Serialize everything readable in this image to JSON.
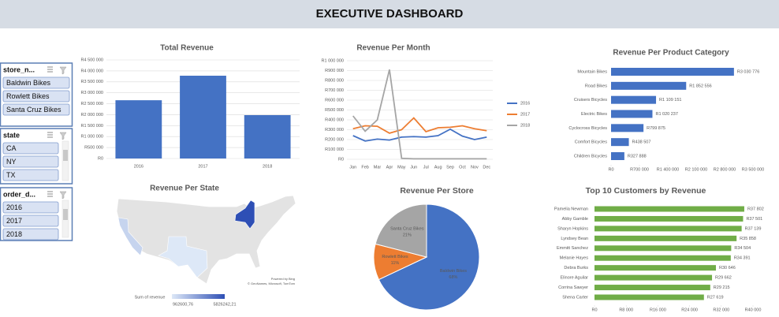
{
  "header": {
    "title": "EXECUTIVE DASHBOARD"
  },
  "slicers": [
    {
      "title": "store_n...",
      "items": [
        "Baldwin Bikes",
        "Rowlett Bikes",
        "Santa Cruz Bikes"
      ]
    },
    {
      "title": "state",
      "items": [
        "CA",
        "NY",
        "TX"
      ]
    },
    {
      "title": "order_d...",
      "items": [
        "2016",
        "2017",
        "2018"
      ]
    }
  ],
  "chart_data": [
    {
      "type": "bar",
      "title": "Total Revenue",
      "categories": [
        "2016",
        "2017",
        "2018"
      ],
      "values": [
        2660000,
        3780000,
        1980000
      ],
      "color": "#4472c4",
      "grid": true,
      "ylim": [
        0,
        4500000
      ],
      "yticks": [
        {
          "value": 0,
          "label": "R0"
        },
        {
          "value": 500000,
          "label": "R500 000"
        },
        {
          "value": 1000000,
          "label": "R1 000 000"
        },
        {
          "value": 1500000,
          "label": "R1 500 000"
        },
        {
          "value": 2000000,
          "label": "R2 000 000"
        },
        {
          "value": 2500000,
          "label": "R2 500 000"
        },
        {
          "value": 3000000,
          "label": "R3 000 000"
        },
        {
          "value": 3500000,
          "label": "R3 500 000"
        },
        {
          "value": 4000000,
          "label": "R4 000 000"
        },
        {
          "value": 4500000,
          "label": "R4 500 000"
        }
      ]
    },
    {
      "type": "line",
      "title": "Revenue Per Month",
      "categories": [
        "Jan",
        "Feb",
        "Mar",
        "Apr",
        "May",
        "Jun",
        "Jul",
        "Aug",
        "Sep",
        "Oct",
        "Nov",
        "Dec"
      ],
      "series": [
        {
          "name": "2016",
          "color": "#4472c4",
          "values": [
            240000,
            185000,
            205000,
            195000,
            225000,
            230000,
            225000,
            240000,
            305000,
            235000,
            200000,
            225000
          ]
        },
        {
          "name": "2017",
          "color": "#ed7d31",
          "values": [
            310000,
            340000,
            335000,
            265000,
            300000,
            420000,
            280000,
            320000,
            325000,
            340000,
            310000,
            290000
          ]
        },
        {
          "name": "2018",
          "color": "#a5a5a5",
          "values": [
            440000,
            285000,
            400000,
            910000,
            10000,
            5000,
            5000,
            5000,
            5000,
            5000,
            5000,
            5000
          ]
        }
      ],
      "grid": true,
      "legend": "right",
      "ylim": [
        0,
        1000000
      ],
      "yticks": [
        {
          "value": 0,
          "label": "R0"
        },
        {
          "value": 100000,
          "label": "R100 000"
        },
        {
          "value": 200000,
          "label": "R200 000"
        },
        {
          "value": 300000,
          "label": "R300 000"
        },
        {
          "value": 400000,
          "label": "R400 000"
        },
        {
          "value": 500000,
          "label": "R500 000"
        },
        {
          "value": 600000,
          "label": "R600 000"
        },
        {
          "value": 700000,
          "label": "R700 000"
        },
        {
          "value": 800000,
          "label": "R800 000"
        },
        {
          "value": 900000,
          "label": "R900 000"
        },
        {
          "value": 1000000,
          "label": "R1 000 000"
        }
      ]
    },
    {
      "type": "barh",
      "title": "Revenue Per Product Category",
      "categories": [
        "Mountain Bikes",
        "Road Bikes",
        "Cruisers Bicycles",
        "Electric Bikes",
        "Cyclocross Bicycles",
        "Comfort Bicycles",
        "Children Bicycles"
      ],
      "values": [
        3030776,
        1852556,
        1109151,
        1020237,
        799875,
        438507,
        327888
      ],
      "value_labels": [
        "R3 030 776",
        "R1 852 556",
        "R1 109 151",
        "R1 020 237",
        "R799 875",
        "R438 507",
        "R327 888"
      ],
      "color": "#4472c4",
      "xlim": [
        0,
        3500000
      ],
      "xticks": [
        {
          "value": 0,
          "label": "R0"
        },
        {
          "value": 700000,
          "label": "R700 000"
        },
        {
          "value": 1400000,
          "label": "R1 400 000"
        },
        {
          "value": 2100000,
          "label": "R2 100 000"
        },
        {
          "value": 2800000,
          "label": "R2 800 000"
        },
        {
          "value": 3500000,
          "label": "R3 500 000"
        }
      ]
    },
    {
      "type": "pie",
      "title": "Revenue Per Store",
      "categories": [
        "Baldwin Bikes",
        "Rowlett Bikes",
        "Santa Cruz Bikes"
      ],
      "values": [
        68,
        11,
        21
      ],
      "value_labels": [
        "68%",
        "11%",
        "21%"
      ],
      "colors": [
        "#4472c4",
        "#ed7d31",
        "#a5a5a5"
      ]
    },
    {
      "type": "barh",
      "title": "Top 10 Customers by Revenue",
      "categories": [
        "Pamelia Newman",
        "Abby Gamble",
        "Sharyn Hopkins",
        "Lyndsey Bean",
        "Emmitt Sanchez",
        "Melanie Hayes",
        "Debra Burks",
        "Elinore Aguilar",
        "Corrina Sawyer",
        "Shena Carter"
      ],
      "values": [
        37802,
        37501,
        37139,
        35858,
        34504,
        34391,
        30646,
        29662,
        29215,
        27619
      ],
      "value_labels": [
        "R37 802",
        "R37 501",
        "R37 139",
        "R35 858",
        "R34 504",
        "R34 391",
        "R30 646",
        "R29 662",
        "R29 215",
        "R27 619"
      ],
      "color": "#70ad47",
      "xlim": [
        0,
        40000
      ],
      "xticks": [
        {
          "value": 0,
          "label": "R0"
        },
        {
          "value": 8000,
          "label": "R8 000"
        },
        {
          "value": 16000,
          "label": "R16 000"
        },
        {
          "value": 24000,
          "label": "R24 000"
        },
        {
          "value": 32000,
          "label": "R32 000"
        },
        {
          "value": 40000,
          "label": "R40 000"
        }
      ]
    }
  ],
  "map": {
    "title": "Revenue Per State",
    "legend_title": "Sum of revenue",
    "values": [
      1605823,
      5826242.21,
      962600.76
    ],
    "scale": [
      {
        "value": 962600.76,
        "label": "962600,76"
      },
      {
        "value": 5826242.21,
        "label": "5826242,21"
      }
    ],
    "colors": [
      "#dde8f7",
      "#2e4fb5"
    ],
    "credits": [
      "Powered by Bing",
      "© GeoNames, Microsoft, TomTom"
    ]
  }
}
